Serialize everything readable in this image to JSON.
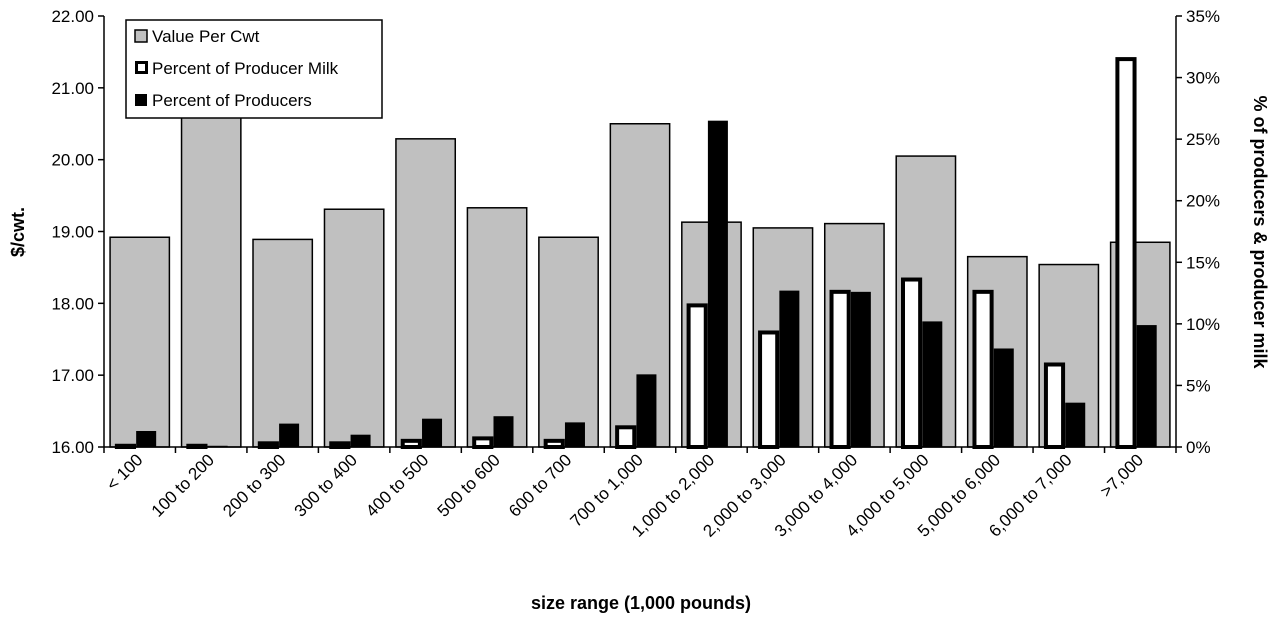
{
  "chart_data": {
    "type": "bar",
    "categories": [
      "< 100",
      "100 to 200",
      "200 to 300",
      "300 to 400",
      "400 to 500",
      "500 to 600",
      "600 to 700",
      "700 to 1,000",
      "1,000 to 2,000",
      "2,000 to 3,000",
      "3,000 to 4,000",
      "4,000 to 5,000",
      "5,000 to 6,000",
      "6,000 to 7,000",
      ">7,000"
    ],
    "series": [
      {
        "name": "Value Per Cwt",
        "axis": "left",
        "style": "gray-fill",
        "color": "#c0c0c0",
        "values": [
          18.92,
          20.6,
          18.89,
          19.31,
          20.29,
          19.33,
          18.92,
          20.5,
          19.13,
          19.05,
          19.11,
          20.05,
          18.65,
          18.54,
          18.85
        ]
      },
      {
        "name": "Percent of Producer Milk",
        "axis": "right",
        "style": "hollow",
        "color": "#000000",
        "values": [
          0.1,
          0.1,
          0.3,
          0.3,
          0.5,
          0.7,
          0.5,
          1.6,
          11.5,
          9.3,
          12.6,
          13.6,
          12.6,
          6.7,
          31.5
        ]
      },
      {
        "name": "Percent of Producers",
        "axis": "right",
        "style": "solid",
        "color": "#000000",
        "values": [
          1.3,
          0.1,
          1.9,
          1.0,
          2.3,
          2.5,
          2.0,
          5.9,
          26.5,
          12.7,
          12.6,
          10.2,
          8.0,
          3.6,
          9.9
        ]
      }
    ],
    "xlabel": "size range (1,000 pounds)",
    "ylabel": "$/cwt.",
    "y2label": "% of producers & producer milk",
    "ylim": [
      16,
      22
    ],
    "y2lim": [
      0,
      35
    ],
    "yticks": [
      "16.00",
      "17.00",
      "18.00",
      "19.00",
      "20.00",
      "21.00",
      "22.00"
    ],
    "y2ticks": [
      "0%",
      "5%",
      "10%",
      "15%",
      "20%",
      "25%",
      "30%",
      "35%"
    ],
    "legend_position": "top-left",
    "grid": false
  }
}
